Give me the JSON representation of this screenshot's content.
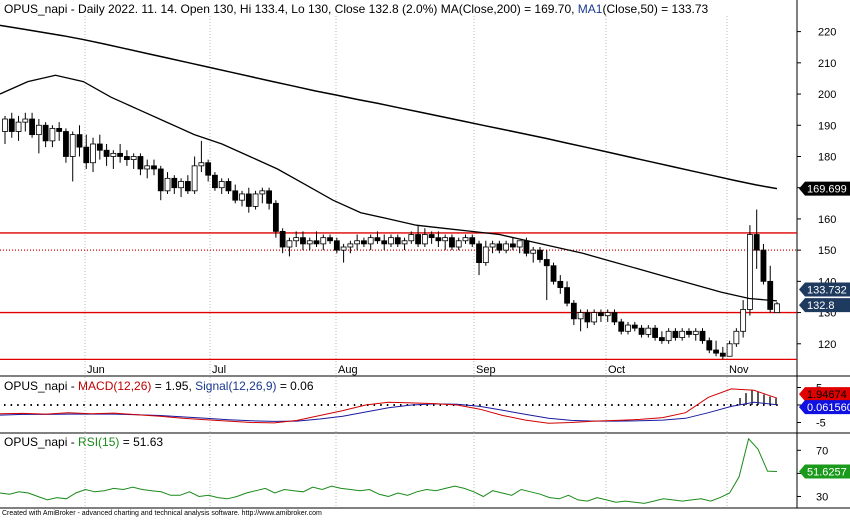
{
  "main": {
    "header": {
      "ticker": "OPUS_napi",
      "info": " - Daily 2022. 11. 14. Open 130, Hi 133.4, Lo 130, Close 132.8 (2.0%) ",
      "ma200_text": "MA(Close,200) = 169.70, ",
      "ma50_label": "MA1",
      "ma50_text": "(Close,50) = 133.73"
    },
    "y_ticks": [
      "220",
      "210",
      "200",
      "190",
      "180",
      "170",
      "160",
      "150",
      "140",
      "130",
      "120"
    ],
    "x_month_labels": [
      "Jun",
      "Jul",
      "Aug",
      "Sep",
      "Oct",
      "Nov"
    ],
    "price_tags": [
      "169.699",
      "133.732",
      "132.8"
    ]
  },
  "macd": {
    "header": {
      "ticker": "OPUS_napi",
      "dash": " - ",
      "macd_text": "MACD(12,26)",
      "macd_value": " = 1.95, ",
      "signal_text": "Signal(12,26,9)",
      "signal_value": " = 0.06"
    },
    "y_ticks": [
      "5",
      "0",
      "-5"
    ],
    "tags": [
      "1.94674",
      "0.061560"
    ]
  },
  "rsi": {
    "header": {
      "ticker": "OPUS_napi",
      "dash": " - ",
      "rsi_text": "RSI(15)",
      "rsi_value": " = 51.63"
    },
    "y_ticks": [
      "70",
      "50",
      "30"
    ],
    "tag": "51.6257"
  },
  "footer_text": "Created with AmiBroker - advanced charting and technical analysis software. http://www.amibroker.com",
  "colors": {
    "up": "#ffffff",
    "down": "#000000",
    "support_lines": "#e00000",
    "macd_line": "#d00000",
    "signal_line": "#1a1aa0",
    "rsi_line": "#1a8a1a",
    "tag_black": "#000000",
    "tag_navy": "#1f3a5f",
    "tag_macd_red": "#e00000",
    "tag_signal_blue": "#1010e0",
    "tag_rsi_green": "#1a9a1a"
  },
  "chart_data": [
    {
      "type": "candlestick",
      "ylim": [
        110,
        225
      ],
      "horizontal_lines": [
        {
          "value": 155.5,
          "style": "solid"
        },
        {
          "value": 150.0,
          "style": "dotted"
        },
        {
          "value": 130.0,
          "style": "solid"
        },
        {
          "value": 115.0,
          "style": "solid"
        }
      ],
      "candles": [
        {
          "o": 188,
          "h": 193,
          "l": 184,
          "c": 192
        },
        {
          "o": 192,
          "h": 194,
          "l": 186,
          "c": 188
        },
        {
          "o": 188,
          "h": 193,
          "l": 185,
          "c": 191
        },
        {
          "o": 191,
          "h": 194,
          "l": 188,
          "c": 192
        },
        {
          "o": 192,
          "h": 194,
          "l": 186,
          "c": 187
        },
        {
          "o": 187,
          "h": 192,
          "l": 181,
          "c": 190
        },
        {
          "o": 190,
          "h": 191,
          "l": 183,
          "c": 185
        },
        {
          "o": 185,
          "h": 190,
          "l": 183,
          "c": 189
        },
        {
          "o": 189,
          "h": 191,
          "l": 185,
          "c": 188
        },
        {
          "o": 188,
          "h": 189,
          "l": 178,
          "c": 180
        },
        {
          "o": 180,
          "h": 188,
          "l": 172,
          "c": 187
        },
        {
          "o": 187,
          "h": 190,
          "l": 180,
          "c": 183
        },
        {
          "o": 183,
          "h": 187,
          "l": 176,
          "c": 178
        },
        {
          "o": 178,
          "h": 186,
          "l": 175,
          "c": 184
        },
        {
          "o": 184,
          "h": 187,
          "l": 179,
          "c": 182
        },
        {
          "o": 182,
          "h": 184,
          "l": 177,
          "c": 180
        },
        {
          "o": 180,
          "h": 182,
          "l": 176,
          "c": 181
        },
        {
          "o": 181,
          "h": 184,
          "l": 178,
          "c": 180
        },
        {
          "o": 180,
          "h": 182,
          "l": 177,
          "c": 179
        },
        {
          "o": 179,
          "h": 181,
          "l": 176,
          "c": 180
        },
        {
          "o": 180,
          "h": 181,
          "l": 174,
          "c": 176
        },
        {
          "o": 176,
          "h": 179,
          "l": 173,
          "c": 177
        },
        {
          "o": 177,
          "h": 179,
          "l": 174,
          "c": 176
        },
        {
          "o": 176,
          "h": 177,
          "l": 166,
          "c": 169
        },
        {
          "o": 169,
          "h": 175,
          "l": 168,
          "c": 173
        },
        {
          "o": 173,
          "h": 174,
          "l": 168,
          "c": 170
        },
        {
          "o": 170,
          "h": 173,
          "l": 167,
          "c": 172
        },
        {
          "o": 172,
          "h": 174,
          "l": 168,
          "c": 169
        },
        {
          "o": 169,
          "h": 180,
          "l": 168,
          "c": 177
        },
        {
          "o": 177,
          "h": 185,
          "l": 175,
          "c": 178
        },
        {
          "o": 178,
          "h": 179,
          "l": 172,
          "c": 174
        },
        {
          "o": 174,
          "h": 175,
          "l": 169,
          "c": 170
        },
        {
          "o": 170,
          "h": 173,
          "l": 168,
          "c": 172
        },
        {
          "o": 172,
          "h": 173,
          "l": 168,
          "c": 169
        },
        {
          "o": 169,
          "h": 171,
          "l": 165,
          "c": 166
        },
        {
          "o": 166,
          "h": 169,
          "l": 164,
          "c": 168
        },
        {
          "o": 168,
          "h": 170,
          "l": 162,
          "c": 164
        },
        {
          "o": 164,
          "h": 169,
          "l": 163,
          "c": 168
        },
        {
          "o": 168,
          "h": 170,
          "l": 165,
          "c": 169
        },
        {
          "o": 169,
          "h": 170,
          "l": 163,
          "c": 165
        },
        {
          "o": 165,
          "h": 166,
          "l": 154,
          "c": 156
        },
        {
          "o": 156,
          "h": 157,
          "l": 149,
          "c": 151
        },
        {
          "o": 151,
          "h": 154,
          "l": 148,
          "c": 153
        },
        {
          "o": 153,
          "h": 156,
          "l": 151,
          "c": 154
        },
        {
          "o": 154,
          "h": 156,
          "l": 150,
          "c": 152
        },
        {
          "o": 152,
          "h": 154,
          "l": 150,
          "c": 153
        },
        {
          "o": 153,
          "h": 156,
          "l": 151,
          "c": 152
        },
        {
          "o": 152,
          "h": 155,
          "l": 150,
          "c": 154
        },
        {
          "o": 154,
          "h": 155,
          "l": 152,
          "c": 153
        },
        {
          "o": 153,
          "h": 154,
          "l": 149,
          "c": 150
        },
        {
          "o": 150,
          "h": 152,
          "l": 146,
          "c": 151
        },
        {
          "o": 151,
          "h": 153,
          "l": 149,
          "c": 152
        },
        {
          "o": 152,
          "h": 155,
          "l": 150,
          "c": 153
        },
        {
          "o": 153,
          "h": 154,
          "l": 151,
          "c": 152
        },
        {
          "o": 152,
          "h": 155,
          "l": 150,
          "c": 154
        },
        {
          "o": 154,
          "h": 156,
          "l": 152,
          "c": 153
        },
        {
          "o": 153,
          "h": 155,
          "l": 150,
          "c": 152
        },
        {
          "o": 152,
          "h": 155,
          "l": 151,
          "c": 154
        },
        {
          "o": 154,
          "h": 155,
          "l": 151,
          "c": 152
        },
        {
          "o": 152,
          "h": 154,
          "l": 150,
          "c": 153
        },
        {
          "o": 153,
          "h": 156,
          "l": 152,
          "c": 155
        },
        {
          "o": 155,
          "h": 158,
          "l": 151,
          "c": 152
        },
        {
          "o": 152,
          "h": 157,
          "l": 151,
          "c": 155
        },
        {
          "o": 155,
          "h": 156,
          "l": 152,
          "c": 154
        },
        {
          "o": 154,
          "h": 156,
          "l": 151,
          "c": 153
        },
        {
          "o": 153,
          "h": 155,
          "l": 150,
          "c": 154
        },
        {
          "o": 154,
          "h": 155,
          "l": 150,
          "c": 151
        },
        {
          "o": 151,
          "h": 154,
          "l": 150,
          "c": 153
        },
        {
          "o": 153,
          "h": 155,
          "l": 152,
          "c": 154
        },
        {
          "o": 154,
          "h": 155,
          "l": 151,
          "c": 152
        },
        {
          "o": 152,
          "h": 153,
          "l": 142,
          "c": 146
        },
        {
          "o": 146,
          "h": 153,
          "l": 145,
          "c": 151
        },
        {
          "o": 151,
          "h": 153,
          "l": 149,
          "c": 152
        },
        {
          "o": 152,
          "h": 153,
          "l": 149,
          "c": 150
        },
        {
          "o": 150,
          "h": 153,
          "l": 149,
          "c": 152
        },
        {
          "o": 152,
          "h": 154,
          "l": 150,
          "c": 151
        },
        {
          "o": 151,
          "h": 153,
          "l": 149,
          "c": 153
        },
        {
          "o": 153,
          "h": 154,
          "l": 148,
          "c": 149
        },
        {
          "o": 149,
          "h": 151,
          "l": 146,
          "c": 150
        },
        {
          "o": 150,
          "h": 151,
          "l": 146,
          "c": 147
        },
        {
          "o": 147,
          "h": 150,
          "l": 134,
          "c": 145
        },
        {
          "o": 145,
          "h": 146,
          "l": 139,
          "c": 140
        },
        {
          "o": 140,
          "h": 142,
          "l": 136,
          "c": 138
        },
        {
          "o": 138,
          "h": 140,
          "l": 132,
          "c": 133
        },
        {
          "o": 133,
          "h": 134,
          "l": 126,
          "c": 128
        },
        {
          "o": 128,
          "h": 131,
          "l": 124,
          "c": 130
        },
        {
          "o": 130,
          "h": 131,
          "l": 125,
          "c": 127
        },
        {
          "o": 127,
          "h": 131,
          "l": 126,
          "c": 130
        },
        {
          "o": 130,
          "h": 131,
          "l": 127,
          "c": 129
        },
        {
          "o": 129,
          "h": 131,
          "l": 127,
          "c": 130
        },
        {
          "o": 130,
          "h": 131,
          "l": 126,
          "c": 127
        },
        {
          "o": 127,
          "h": 128,
          "l": 123,
          "c": 124
        },
        {
          "o": 124,
          "h": 127,
          "l": 123,
          "c": 126
        },
        {
          "o": 126,
          "h": 127,
          "l": 124,
          "c": 125
        },
        {
          "o": 125,
          "h": 126,
          "l": 122,
          "c": 123
        },
        {
          "o": 123,
          "h": 126,
          "l": 122,
          "c": 125
        },
        {
          "o": 125,
          "h": 126,
          "l": 121,
          "c": 122
        },
        {
          "o": 122,
          "h": 124,
          "l": 120,
          "c": 121
        },
        {
          "o": 121,
          "h": 125,
          "l": 120,
          "c": 124
        },
        {
          "o": 124,
          "h": 125,
          "l": 121,
          "c": 122
        },
        {
          "o": 122,
          "h": 125,
          "l": 121,
          "c": 124
        },
        {
          "o": 124,
          "h": 125,
          "l": 122,
          "c": 123
        },
        {
          "o": 123,
          "h": 125,
          "l": 121,
          "c": 124
        },
        {
          "o": 124,
          "h": 125,
          "l": 120,
          "c": 121
        },
        {
          "o": 121,
          "h": 122,
          "l": 117,
          "c": 118
        },
        {
          "o": 118,
          "h": 121,
          "l": 116,
          "c": 117
        },
        {
          "o": 117,
          "h": 119,
          "l": 115,
          "c": 116
        },
        {
          "o": 116,
          "h": 121,
          "l": 116,
          "c": 120
        },
        {
          "o": 120,
          "h": 125,
          "l": 119,
          "c": 124
        },
        {
          "o": 124,
          "h": 134,
          "l": 122,
          "c": 131
        },
        {
          "o": 131,
          "h": 158,
          "l": 129,
          "c": 155
        },
        {
          "o": 155,
          "h": 163,
          "l": 144,
          "c": 150
        },
        {
          "o": 150,
          "h": 152,
          "l": 139,
          "c": 140
        },
        {
          "o": 140,
          "h": 145,
          "l": 130,
          "c": 131
        },
        {
          "o": 130,
          "h": 133.4,
          "l": 130,
          "c": 132.8
        }
      ],
      "ma200": [
        222,
        220.9,
        219.8,
        218.7,
        217.4,
        216,
        214.5,
        213,
        211.5,
        210,
        208.5,
        207,
        205.5,
        204,
        202.5,
        201,
        199.7,
        198.3,
        197,
        195.6,
        194.2,
        192.8,
        191.4,
        190,
        188.6,
        187.2,
        185.8,
        184.3,
        182.8,
        181.3,
        179.8,
        178.3,
        176.8,
        175.3,
        173.8,
        172.3,
        170.9,
        169.699
      ],
      "ma50": [
        200,
        204,
        206,
        204,
        199,
        195,
        191,
        187,
        184,
        180,
        176,
        171,
        166,
        162,
        160,
        158,
        157,
        156,
        155,
        153,
        151,
        149,
        146.5,
        144,
        141.5,
        139,
        136.5,
        134.5,
        133.732
      ],
      "month_labels": [
        "Jun",
        "Jul",
        "Aug",
        "Sep",
        "Oct",
        "Nov"
      ]
    },
    {
      "type": "line",
      "title": "MACD(12,26)",
      "ylim": [
        -8,
        8
      ],
      "series": [
        {
          "name": "MACD(12,26)",
          "values": [
            -2.5,
            -2.4,
            -2.6,
            -2.2,
            -2.5,
            -2.3,
            -2.8,
            -3.2,
            -3.8,
            -4.2,
            -4.6,
            -5.0,
            -5.1,
            -4.4,
            -3.0,
            -1.6,
            0.0,
            0.8,
            0.6,
            0.4,
            0.0,
            -1.2,
            -3.0,
            -4.3,
            -5.2,
            -5.0,
            -4.6,
            -4.4,
            -4.1,
            -3.6,
            -2.2,
            2.2,
            4.6,
            4.2,
            1.95
          ]
        },
        {
          "name": "Signal(12,26,9)",
          "values": [
            -2.9,
            -2.7,
            -2.7,
            -2.6,
            -2.6,
            -2.6,
            -2.8,
            -3.0,
            -3.4,
            -3.8,
            -4.2,
            -4.5,
            -4.7,
            -4.6,
            -4.0,
            -3.2,
            -2.0,
            -0.8,
            0.0,
            0.3,
            0.2,
            -0.4,
            -1.5,
            -2.7,
            -3.8,
            -4.4,
            -4.6,
            -4.6,
            -4.5,
            -4.3,
            -3.8,
            -2.2,
            -0.4,
            0.8,
            0.06
          ]
        }
      ]
    },
    {
      "type": "line",
      "title": "RSI(15)",
      "ylim": [
        20,
        85
      ],
      "series": [
        {
          "name": "RSI(15)",
          "values": [
            33,
            32,
            34,
            33,
            30,
            27,
            29,
            28,
            33,
            36,
            34,
            35,
            37,
            36,
            38,
            36,
            35,
            34,
            31,
            31,
            34,
            30,
            31,
            29,
            28,
            30,
            33,
            35,
            37,
            33,
            36,
            35,
            34,
            38,
            36,
            39,
            37,
            36,
            35,
            36,
            32,
            30,
            33,
            31,
            34,
            36,
            35,
            37,
            39,
            37,
            34,
            30,
            35,
            33,
            31,
            36,
            34,
            32,
            29,
            28,
            31,
            27,
            26,
            29,
            27,
            25,
            26,
            25,
            24,
            26,
            28,
            27,
            26,
            27,
            28,
            26,
            29,
            33,
            47,
            80,
            71,
            52,
            51.63
          ]
        }
      ]
    }
  ]
}
